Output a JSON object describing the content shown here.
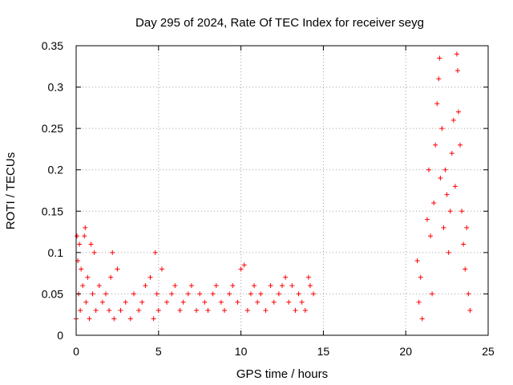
{
  "chart_data": {
    "type": "scatter",
    "title": "Day 295 of 2024, Rate Of TEC Index for receiver seyg",
    "xlabel": "GPS time / hours",
    "ylabel": "ROTI / TECUs",
    "xlim": [
      0,
      25
    ],
    "ylim": [
      0,
      0.35
    ],
    "x_ticks": [
      0,
      5,
      10,
      15,
      20,
      25
    ],
    "x_tick_labels": [
      "0",
      "5",
      "10",
      "15",
      "20",
      "25"
    ],
    "y_ticks": [
      0,
      0.05,
      0.1,
      0.15,
      0.2,
      0.25,
      0.3,
      0.35
    ],
    "y_tick_labels": [
      "0",
      "0.05",
      "0.1",
      "0.15",
      "0.2",
      "0.25",
      "0.3",
      "0.35"
    ],
    "grid": true,
    "marker": "plus",
    "color": "#ff0000",
    "series": [
      {
        "points": [
          [
            0.0,
            0.02
          ],
          [
            0.05,
            0.12
          ],
          [
            0.1,
            0.09
          ],
          [
            0.15,
            0.05
          ],
          [
            0.2,
            0.11
          ],
          [
            0.25,
            0.03
          ],
          [
            0.3,
            0.08
          ],
          [
            0.4,
            0.06
          ],
          [
            0.5,
            0.12
          ],
          [
            0.55,
            0.13
          ],
          [
            0.6,
            0.04
          ],
          [
            0.7,
            0.07
          ],
          [
            0.8,
            0.02
          ],
          [
            0.9,
            0.11
          ],
          [
            1.0,
            0.05
          ],
          [
            1.1,
            0.1
          ],
          [
            1.2,
            0.03
          ],
          [
            1.4,
            0.06
          ],
          [
            1.6,
            0.04
          ],
          [
            1.8,
            0.05
          ],
          [
            2.0,
            0.03
          ],
          [
            2.1,
            0.07
          ],
          [
            2.2,
            0.1
          ],
          [
            2.3,
            0.02
          ],
          [
            2.5,
            0.08
          ],
          [
            2.7,
            0.03
          ],
          [
            3.0,
            0.04
          ],
          [
            3.3,
            0.02
          ],
          [
            3.5,
            0.05
          ],
          [
            3.8,
            0.03
          ],
          [
            4.0,
            0.04
          ],
          [
            4.2,
            0.06
          ],
          [
            4.5,
            0.07
          ],
          [
            4.7,
            0.02
          ],
          [
            4.8,
            0.1
          ],
          [
            4.9,
            0.05
          ],
          [
            5.0,
            0.03
          ],
          [
            5.2,
            0.08
          ],
          [
            5.5,
            0.04
          ],
          [
            5.8,
            0.05
          ],
          [
            6.0,
            0.06
          ],
          [
            6.3,
            0.03
          ],
          [
            6.5,
            0.04
          ],
          [
            6.8,
            0.05
          ],
          [
            7.0,
            0.06
          ],
          [
            7.3,
            0.03
          ],
          [
            7.5,
            0.05
          ],
          [
            7.8,
            0.04
          ],
          [
            8.0,
            0.03
          ],
          [
            8.3,
            0.05
          ],
          [
            8.5,
            0.06
          ],
          [
            8.8,
            0.04
          ],
          [
            9.0,
            0.03
          ],
          [
            9.3,
            0.05
          ],
          [
            9.5,
            0.06
          ],
          [
            9.8,
            0.04
          ],
          [
            10.0,
            0.08
          ],
          [
            10.2,
            0.085
          ],
          [
            10.4,
            0.03
          ],
          [
            10.6,
            0.05
          ],
          [
            10.8,
            0.06
          ],
          [
            11.0,
            0.04
          ],
          [
            11.2,
            0.05
          ],
          [
            11.5,
            0.03
          ],
          [
            11.8,
            0.06
          ],
          [
            12.0,
            0.04
          ],
          [
            12.3,
            0.05
          ],
          [
            12.5,
            0.06
          ],
          [
            12.7,
            0.07
          ],
          [
            12.9,
            0.04
          ],
          [
            13.1,
            0.06
          ],
          [
            13.3,
            0.03
          ],
          [
            13.5,
            0.05
          ],
          [
            13.7,
            0.04
          ],
          [
            13.9,
            0.03
          ],
          [
            14.1,
            0.07
          ],
          [
            14.2,
            0.06
          ],
          [
            14.4,
            0.05
          ],
          [
            20.7,
            0.09
          ],
          [
            20.8,
            0.04
          ],
          [
            20.9,
            0.07
          ],
          [
            21.0,
            0.02
          ],
          [
            21.3,
            0.14
          ],
          [
            21.4,
            0.2
          ],
          [
            21.5,
            0.12
          ],
          [
            21.6,
            0.05
          ],
          [
            21.7,
            0.16
          ],
          [
            21.8,
            0.23
          ],
          [
            21.9,
            0.28
          ],
          [
            22.0,
            0.31
          ],
          [
            22.05,
            0.335
          ],
          [
            22.1,
            0.19
          ],
          [
            22.2,
            0.25
          ],
          [
            22.3,
            0.13
          ],
          [
            22.4,
            0.2
          ],
          [
            22.5,
            0.17
          ],
          [
            22.6,
            0.1
          ],
          [
            22.7,
            0.15
          ],
          [
            22.8,
            0.22
          ],
          [
            22.9,
            0.26
          ],
          [
            23.0,
            0.18
          ],
          [
            23.1,
            0.34
          ],
          [
            23.15,
            0.32
          ],
          [
            23.2,
            0.27
          ],
          [
            23.3,
            0.23
          ],
          [
            23.4,
            0.15
          ],
          [
            23.5,
            0.11
          ],
          [
            23.6,
            0.08
          ],
          [
            23.7,
            0.13
          ],
          [
            23.8,
            0.05
          ],
          [
            23.9,
            0.03
          ]
        ]
      }
    ]
  }
}
